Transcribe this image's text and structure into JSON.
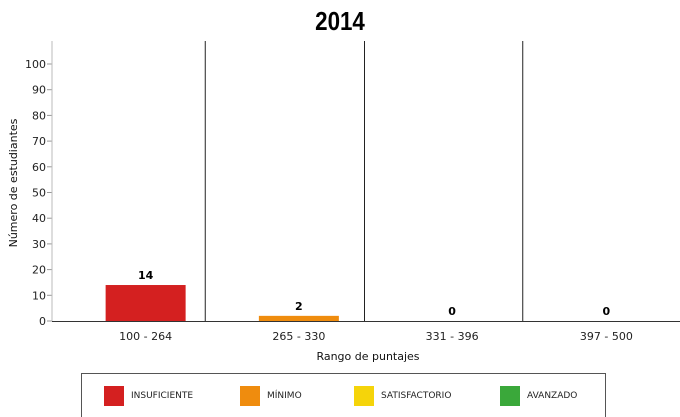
{
  "chart_data": {
    "type": "bar",
    "title": "2014",
    "xlabel": "Rango de puntajes",
    "ylabel": "Número de estudiantes",
    "categories": [
      "100 - 264",
      "265 - 330",
      "331 - 396",
      "397 - 500"
    ],
    "values": [
      14,
      2,
      0,
      0
    ],
    "data_labels": [
      "14",
      "2",
      "0",
      "0"
    ],
    "bar_colors": [
      "#d42020",
      "#ef8c0e",
      "#f5d40a",
      "#3aa83a"
    ],
    "ylim": [
      0,
      100
    ],
    "yticks": [
      0,
      10,
      20,
      30,
      40,
      50,
      60,
      70,
      80,
      90,
      100
    ],
    "grid": false,
    "category_separators": true,
    "legend_position": "bottom",
    "legend": [
      {
        "label": "INSUFICIENTE",
        "color": "#d42020"
      },
      {
        "label": "MÍNIMO",
        "color": "#ef8c0e"
      },
      {
        "label": "SATISFACTORIO",
        "color": "#f5d40a"
      },
      {
        "label": "AVANZADO",
        "color": "#3aa83a"
      }
    ]
  }
}
